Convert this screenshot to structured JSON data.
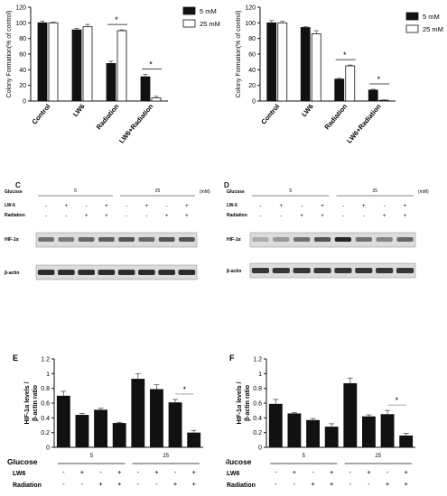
{
  "colors": {
    "bar_5mM": "#111111",
    "bar_25mM": "#ffffff",
    "bar_outline": "#111111",
    "blot_band": "#1a1a1a",
    "blot_bg": "#dcdcdc"
  },
  "charts": [
    {
      "type": "bar",
      "ylabel": "Colony Formation(% of control)",
      "ylim": [
        0,
        120
      ],
      "yticks": [
        "0",
        "20",
        "40",
        "60",
        "80",
        "100",
        "120"
      ],
      "categories": [
        "Control",
        "LW6",
        "Radiation",
        "LW6+Radiation"
      ],
      "series": [
        {
          "name": "5 mM",
          "values": [
            100,
            91,
            48,
            31
          ],
          "errors": [
            2,
            2,
            3,
            3
          ]
        },
        {
          "name": "25 mM",
          "values": [
            100,
            95,
            90,
            4
          ],
          "errors": [
            1,
            3,
            1,
            2
          ]
        }
      ],
      "significance": [
        "",
        "",
        "*",
        "*"
      ]
    },
    {
      "type": "bar",
      "ylabel": "Colony Formation(% of control)",
      "ylim": [
        0,
        120
      ],
      "yticks": [
        "0",
        "20",
        "40",
        "60",
        "80",
        "100",
        "120"
      ],
      "categories": [
        "Control",
        "LW6",
        "Radiation",
        "LW6+Radiation"
      ],
      "series": [
        {
          "name": "5 mM",
          "values": [
            100,
            94,
            28,
            14
          ],
          "errors": [
            3,
            1,
            1,
            1
          ]
        },
        {
          "name": "25 mM",
          "values": [
            100,
            86,
            45,
            1
          ],
          "errors": [
            2,
            4,
            1,
            0.5
          ]
        }
      ],
      "significance": [
        "",
        "",
        "*",
        "*"
      ]
    },
    {
      "panel": "E",
      "type": "bar",
      "ylabel": "HIF-1α levels / β-actin ratio",
      "ylim": [
        0,
        1.2
      ],
      "yticks": [
        "0",
        "0.2",
        "0.4",
        "0.6",
        "0.8",
        "1",
        "1.2"
      ],
      "values": [
        0.7,
        0.44,
        0.51,
        0.33,
        0.93,
        0.79,
        0.61,
        0.2
      ],
      "errors": [
        0.06,
        0.02,
        0.02,
        0.01,
        0.07,
        0.06,
        0.04,
        0.03
      ],
      "significance": "*",
      "glucose_label": "Glucose",
      "lw6_label": "LW6",
      "radiation_label": "Radiation",
      "glucose_groups": [
        "5",
        "25"
      ],
      "lw6_signs": [
        "-",
        "+",
        "-",
        "+",
        "-",
        "+",
        "-",
        "+"
      ],
      "radiation_signs": [
        "-",
        "-",
        "+",
        "+",
        "-",
        "-",
        "+",
        "+"
      ]
    },
    {
      "panel": "F",
      "type": "bar",
      "ylabel": "HIF-1α levels / β-actin ratio",
      "ylim": [
        0,
        1.2
      ],
      "yticks": [
        "0",
        "0.2",
        "0.4",
        "0.6",
        "0.8",
        "1",
        "1.2"
      ],
      "values": [
        0.59,
        0.46,
        0.37,
        0.28,
        0.87,
        0.42,
        0.45,
        0.16
      ],
      "errors": [
        0.06,
        0.01,
        0.02,
        0.04,
        0.07,
        0.02,
        0.05,
        0.03
      ],
      "significance": "*",
      "glucose_label": "Glucose",
      "lw6_label": "LW6",
      "radiation_label": "Radiation",
      "glucose_groups": [
        "5",
        "25"
      ],
      "lw6_signs": [
        "-",
        "+",
        "-",
        "+",
        "-",
        "+",
        "-",
        "+"
      ],
      "radiation_signs": [
        "-",
        "-",
        "+",
        "+",
        "-",
        "-",
        "+",
        "+"
      ]
    }
  ],
  "blots": [
    {
      "panel": "C",
      "glucose_label": "Glucose",
      "glucose_groups": [
        "5",
        "25"
      ],
      "unit": "(mM)",
      "lw6_label": "LW-6",
      "radiation_label": "Radiation",
      "lw6_signs": [
        "-",
        "+",
        "-",
        "+",
        "-",
        "+",
        "-",
        "+"
      ],
      "radiation_signs": [
        "-",
        "-",
        "+",
        "+",
        "-",
        "-",
        "+",
        "+"
      ],
      "hif_label": "HIF-1α",
      "actin_label": "β-actin",
      "hif_intensity": [
        0.55,
        0.5,
        0.6,
        0.65,
        0.7,
        0.6,
        0.7,
        0.7
      ],
      "actin_intensity": [
        0.9,
        0.9,
        0.9,
        0.9,
        0.9,
        0.9,
        0.9,
        0.9
      ]
    },
    {
      "panel": "D",
      "glucose_label": "Glucose",
      "glucose_groups": [
        "5",
        "25"
      ],
      "unit": "(mM)",
      "lw6_label": "LW-6",
      "radiation_label": "Radiation",
      "lw6_signs": [
        "-",
        "+",
        "-",
        "+",
        "-",
        "+",
        "-",
        "+"
      ],
      "radiation_signs": [
        "-",
        "-",
        "+",
        "+",
        "-",
        "-",
        "+",
        "+"
      ],
      "hif_label": "HIF-1α",
      "actin_label": "β-actin",
      "hif_intensity": [
        0.25,
        0.35,
        0.55,
        0.7,
        0.95,
        0.55,
        0.45,
        0.6
      ],
      "actin_intensity": [
        0.85,
        0.85,
        0.85,
        0.85,
        0.85,
        0.85,
        0.85,
        0.85
      ]
    }
  ]
}
